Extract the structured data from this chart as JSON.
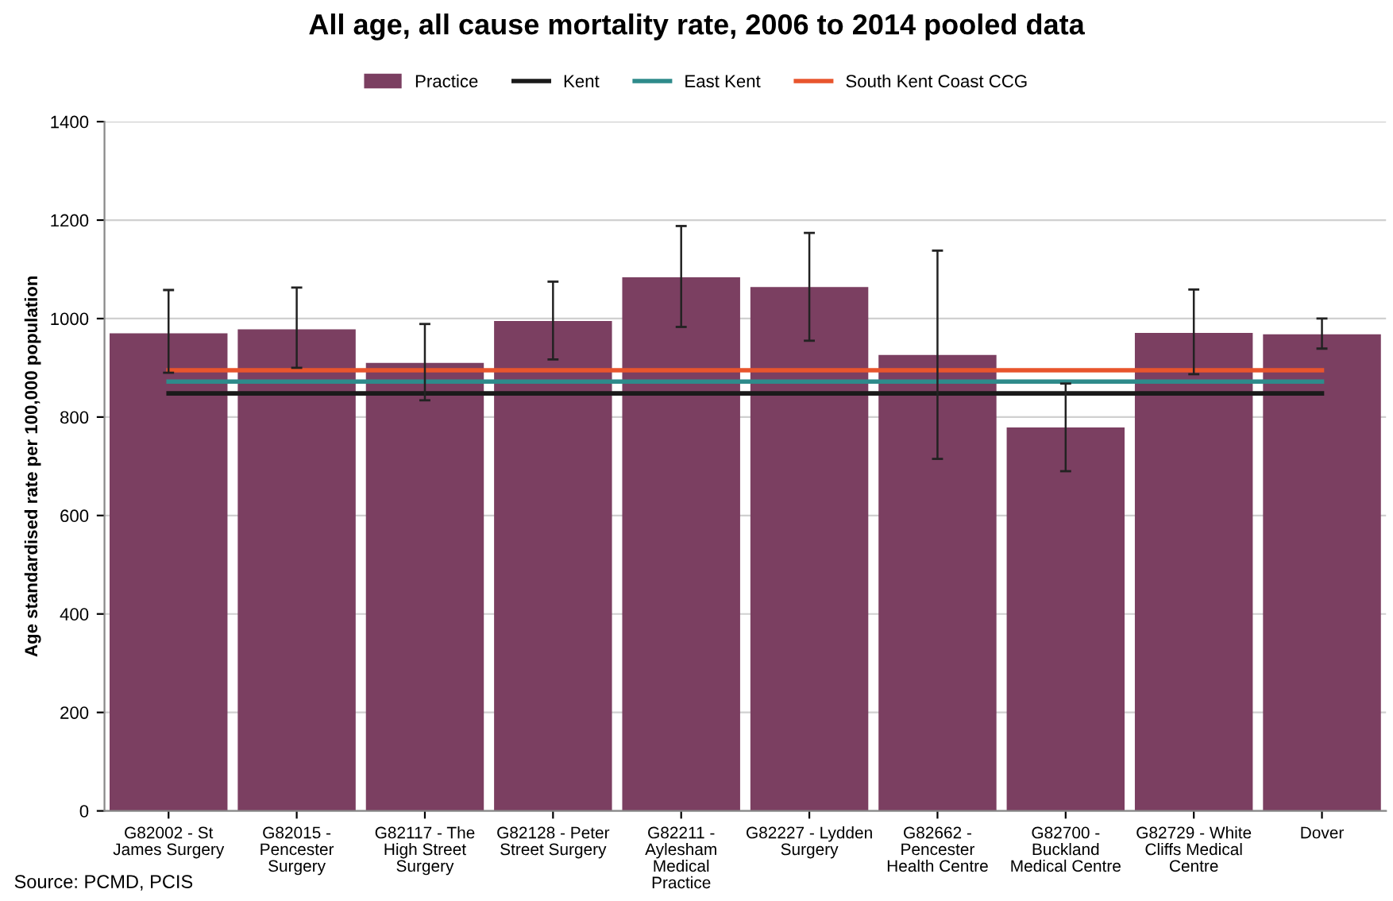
{
  "chart_data": {
    "type": "bar",
    "title": "All age, all cause mortality rate, 2006 to 2014 pooled data",
    "ylabel": "Age standardised rate per 100,000 population",
    "categories": [
      "G82002 - St James Surgery",
      "G82015 - Pencester Surgery",
      "G82117 - The High Street Surgery",
      "G82128 - Peter Street Surgery",
      "G82211 - Aylesham Medical Practice",
      "G82227 - Lydden Surgery",
      "G82662 - Pencester Health Centre",
      "G82700 - Buckland Medical Centre",
      "G82729 - White Cliffs Medical Centre",
      "Dover"
    ],
    "series": [
      {
        "name": "Practice",
        "color": "#7b3f61",
        "values": [
          970,
          978,
          910,
          995,
          1084,
          1064,
          926,
          779,
          971,
          968
        ],
        "errors": [
          [
            890,
            1058
          ],
          [
            900,
            1063
          ],
          [
            834,
            989
          ],
          [
            917,
            1075
          ],
          [
            983,
            1188
          ],
          [
            955,
            1174
          ],
          [
            715,
            1138
          ],
          [
            690,
            868
          ],
          [
            887,
            1059
          ],
          [
            939,
            1000
          ]
        ]
      },
      {
        "name": "Kent",
        "type": "line",
        "color": "#1a1a1a",
        "values": [
          848,
          848,
          848,
          848,
          848,
          848,
          848,
          848,
          848,
          848
        ]
      },
      {
        "name": "East Kent",
        "type": "line",
        "color": "#2e8b8b",
        "values": [
          872,
          872,
          872,
          872,
          872,
          872,
          872,
          872,
          872,
          872
        ]
      },
      {
        "name": "South Kent Coast CCG",
        "type": "line",
        "color": "#e8552d",
        "values": [
          895,
          895,
          895,
          895,
          895,
          895,
          895,
          895,
          895,
          895
        ]
      }
    ],
    "ylim": [
      0,
      1400
    ],
    "yticks": [
      0,
      200,
      400,
      600,
      800,
      1000,
      1200,
      1400
    ],
    "grid": "y",
    "legend": "top",
    "annotations": [
      "Source: PCMD, PCIS"
    ]
  }
}
